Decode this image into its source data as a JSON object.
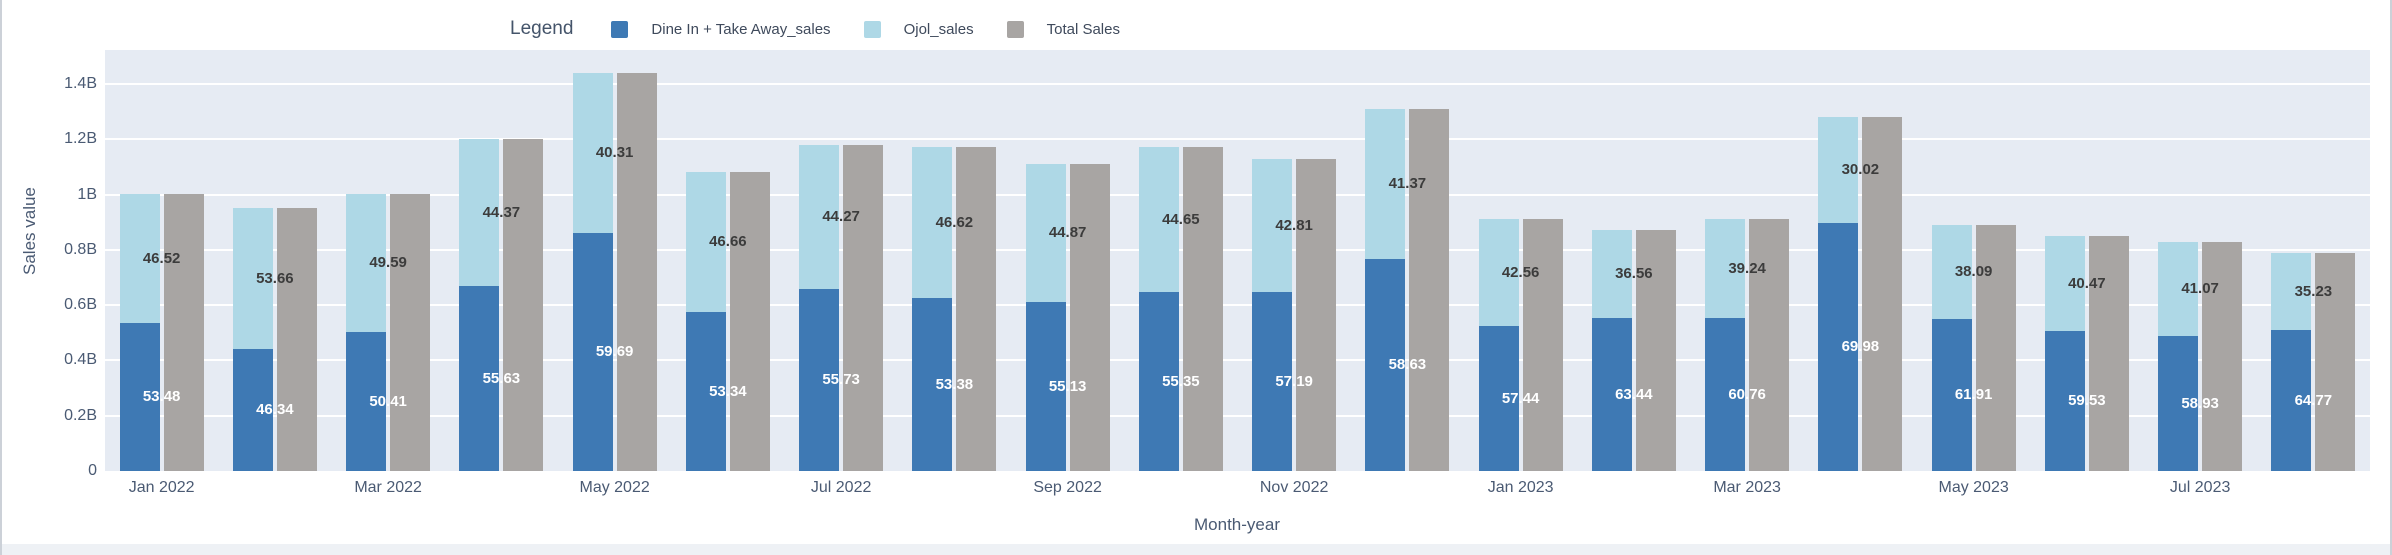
{
  "legend": {
    "title": "Legend",
    "items": [
      {
        "label": "Dine In + Take Away_sales",
        "color": "#3e79b4"
      },
      {
        "label": "Ojol_sales",
        "color": "#aed8e6"
      },
      {
        "label": "Total Sales",
        "color": "#a8a5a3"
      }
    ]
  },
  "y_axis": {
    "title": "Sales value",
    "ticks": [
      "0",
      "0.2B",
      "0.4B",
      "0.6B",
      "0.8B",
      "1B",
      "1.2B",
      "1.4B"
    ]
  },
  "x_axis": {
    "title": "Month-year",
    "tick_step": 2,
    "ticks_shown": [
      "Jan 2022",
      "Mar 2022",
      "May 2022",
      "Jul 2022",
      "Sep 2022",
      "Nov 2022",
      "Jan 2023",
      "Mar 2023",
      "May 2023",
      "Jul 2023"
    ]
  },
  "chart_data": {
    "type": "bar",
    "subtype": "per-month pair: stacked bar (Dine In + Ojol) beside Total Sales bar of equal height; stacked segment labels are percentages of total",
    "title": "",
    "xlabel": "Month-year",
    "ylabel": "Sales value",
    "ylim": [
      0,
      1.52
    ],
    "grid": true,
    "legend_position": "top",
    "categories": [
      "Jan 2022",
      "Feb 2022",
      "Mar 2022",
      "Apr 2022",
      "May 2022",
      "Jun 2022",
      "Jul 2022",
      "Aug 2022",
      "Sep 2022",
      "Oct 2022",
      "Nov 2022",
      "Dec 2022",
      "Jan 2023",
      "Feb 2023",
      "Mar 2023",
      "Apr 2023",
      "May 2023",
      "Jun 2023",
      "Jul 2023",
      "Aug 2023"
    ],
    "total_sales_B": [
      1.0,
      0.95,
      1.0,
      1.2,
      1.44,
      1.08,
      1.18,
      1.17,
      1.11,
      1.17,
      1.13,
      1.31,
      0.91,
      0.87,
      0.91,
      1.28,
      0.89,
      0.85,
      0.83,
      0.79
    ],
    "series": [
      {
        "name": "Dine In + Take Away_sales",
        "color": "#3e79b4",
        "role": "stack-bottom",
        "pct_of_total": [
          53.48,
          46.34,
          50.41,
          55.63,
          59.69,
          53.34,
          55.73,
          53.38,
          55.13,
          55.35,
          57.19,
          58.63,
          57.44,
          63.44,
          60.76,
          69.98,
          61.91,
          59.53,
          58.93,
          64.77
        ]
      },
      {
        "name": "Ojol_sales",
        "color": "#aed8e6",
        "role": "stack-top",
        "pct_of_total": [
          46.52,
          53.66,
          49.59,
          44.37,
          40.31,
          46.66,
          44.27,
          46.62,
          44.87,
          44.65,
          42.81,
          41.37,
          42.56,
          36.56,
          39.24,
          30.02,
          38.09,
          40.47,
          41.07,
          35.23
        ]
      },
      {
        "name": "Total Sales",
        "color": "#a8a5a3",
        "role": "total-bar"
      }
    ]
  },
  "colors": {
    "plot_background": "#e6ebf3",
    "gridline": "#ffffff",
    "axis_text": "#4a5a73",
    "label_on_light": "#3c3c3c",
    "label_on_dark": "#ffffff",
    "card_border": "#ccd1d8"
  }
}
